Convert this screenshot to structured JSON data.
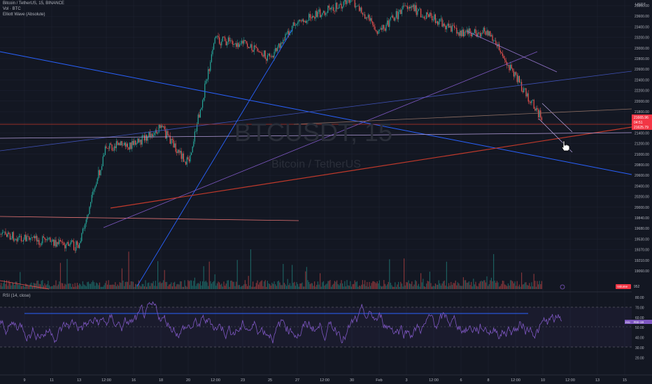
{
  "symbol": {
    "title": "Bitcoin / TetherUS, 15, BINANCE",
    "volume_label": "Vol · BTC",
    "indicator_label": "Elliott Wave (Absolute)",
    "watermark_ticker": "BTCUSDT, 15",
    "watermark_name": "Bitcoin / TetherUS",
    "currency": "USDT"
  },
  "price_labels": {
    "current_price": "21625.79",
    "line_a": "21665.96",
    "line_a_countdown": "04:51",
    "volume_value": "952",
    "volume_tag": "Volume",
    "rsi_tag_a": "RSI",
    "rsi_tag_b": "RSI-19"
  },
  "rsi_label": "RSI (14, close)",
  "colors": {
    "background": "#131722",
    "grid": "#1f2433",
    "up": "#26a69a",
    "down": "#ef5350",
    "rsi_line": "#7e57c2",
    "trend_blue": "#2962ff",
    "trend_red": "#c0392b"
  },
  "chart_data": [
    {
      "type": "candlestick",
      "title": "Bitcoin / TetherUS, 15, BINANCE",
      "x_ticks": [
        "9",
        "11",
        "13",
        "12:00",
        "16",
        "18",
        "20",
        "12:00",
        "23",
        "25",
        "27",
        "12:00",
        "30",
        "Feb",
        "3",
        "12:00",
        "6",
        "8",
        "12:00",
        "10",
        "12:00",
        "13",
        "15"
      ],
      "y_ticks": [
        23800,
        23600,
        23400,
        23200,
        23000,
        22800,
        22600,
        22400,
        22200,
        22000,
        21800,
        21600,
        21400,
        21200,
        21000,
        20800,
        20600,
        20400,
        20200,
        20000,
        19840,
        19680,
        19530,
        19370,
        19210,
        19060
      ],
      "ylim": [
        19060,
        23960
      ],
      "key_points": [
        {
          "x": "13",
          "price": 19420
        },
        {
          "x": "12:00",
          "price": 21150
        },
        {
          "x": "16",
          "price": 21180
        },
        {
          "x": "18",
          "price": 21500
        },
        {
          "x": "20",
          "price": 20820
        },
        {
          "x": "12:00",
          "price": 23150
        },
        {
          "x": "23",
          "price": 23100
        },
        {
          "x": "25",
          "price": 22800
        },
        {
          "x": "27",
          "price": 23500
        },
        {
          "x": "30",
          "price": 23900
        },
        {
          "x": "Feb",
          "price": 23300
        },
        {
          "x": "3",
          "price": 23800
        },
        {
          "x": "6",
          "price": 23300
        },
        {
          "x": "8",
          "price": 23300
        },
        {
          "x": "10",
          "price": 21630
        }
      ],
      "current_price": 21625.79
    },
    {
      "type": "line",
      "title": "RSI (14, close)",
      "y_ticks": [
        80.0,
        70.0,
        60.0,
        50.0,
        40.0,
        30.0,
        20.0
      ],
      "ylim": [
        15,
        85
      ],
      "bands": [
        70,
        30
      ],
      "range": [
        25,
        80
      ]
    }
  ]
}
